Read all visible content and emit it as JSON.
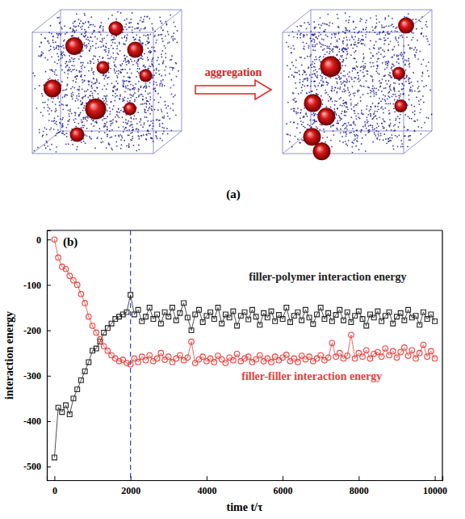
{
  "illustration": {
    "arrow_label": "aggregation",
    "panel_label": "(a)"
  },
  "chart_data": {
    "type": "line",
    "panel_label": "(b)",
    "x_label": "time t/τ",
    "y_label": "interaction energy",
    "x": [
      0,
      100,
      200,
      300,
      400,
      500,
      600,
      700,
      800,
      900,
      1000,
      1100,
      1200,
      1300,
      1400,
      1500,
      1600,
      1700,
      1800,
      1900,
      2000,
      2100,
      2200,
      2300,
      2400,
      2500,
      2600,
      2700,
      2800,
      2900,
      3000,
      3100,
      3200,
      3300,
      3400,
      3500,
      3600,
      3700,
      3800,
      3900,
      4000,
      4100,
      4200,
      4300,
      4400,
      4500,
      4600,
      4700,
      4800,
      4900,
      5000,
      5100,
      5200,
      5300,
      5400,
      5500,
      5600,
      5700,
      5800,
      5900,
      6000,
      6100,
      6200,
      6300,
      6400,
      6500,
      6600,
      6700,
      6800,
      6900,
      7000,
      7100,
      7200,
      7300,
      7400,
      7500,
      7600,
      7700,
      7800,
      7900,
      8000,
      8100,
      8200,
      8300,
      8400,
      8500,
      8600,
      8700,
      8800,
      8900,
      9000,
      9100,
      9200,
      9300,
      9400,
      9500,
      9600,
      9700,
      9800,
      9900,
      10000
    ],
    "series": [
      {
        "name": "filler-polymer interaction energy",
        "color": "#222222",
        "marker": "square",
        "line_style": "solid",
        "values": [
          -480,
          -370,
          -380,
          -365,
          -385,
          -350,
          -330,
          -310,
          -290,
          -270,
          -245,
          -240,
          -225,
          -205,
          -195,
          -185,
          -175,
          -170,
          -165,
          -160,
          -122,
          -165,
          -155,
          -180,
          -170,
          -150,
          -175,
          -165,
          -185,
          -160,
          -170,
          -150,
          -178,
          -162,
          -140,
          -172,
          -200,
          -165,
          -155,
          -182,
          -168,
          -160,
          -175,
          -150,
          -185,
          -165,
          -172,
          -158,
          -190,
          -168,
          -160,
          -176,
          -155,
          -170,
          -188,
          -162,
          -172,
          -158,
          -180,
          -166,
          -175,
          -150,
          -182,
          -168,
          -160,
          -178,
          -155,
          -172,
          -186,
          -165,
          -150,
          -175,
          -162,
          -180,
          -166,
          -155,
          -178,
          -160,
          -182,
          -168,
          -158,
          -175,
          -190,
          -165,
          -172,
          -158,
          -180,
          -168,
          -160,
          -185,
          -170,
          -162,
          -178,
          -155,
          -172,
          -168,
          -188,
          -160,
          -175,
          -165,
          -180
        ]
      },
      {
        "name": "filler-filler interaction energy",
        "color": "#e8413c",
        "marker": "circle",
        "line_style": "solid",
        "values": [
          0,
          -40,
          -60,
          -65,
          -80,
          -90,
          -100,
          -120,
          -140,
          -170,
          -190,
          -205,
          -220,
          -235,
          -245,
          -255,
          -262,
          -268,
          -265,
          -272,
          -275,
          -262,
          -270,
          -258,
          -266,
          -255,
          -268,
          -262,
          -250,
          -265,
          -258,
          -270,
          -262,
          -255,
          -266,
          -260,
          -225,
          -272,
          -264,
          -258,
          -268,
          -262,
          -270,
          -256,
          -264,
          -272,
          -260,
          -266,
          -252,
          -268,
          -262,
          -258,
          -270,
          -264,
          -255,
          -268,
          -262,
          -270,
          -258,
          -266,
          -260,
          -254,
          -268,
          -262,
          -270,
          -256,
          -264,
          -258,
          -268,
          -262,
          -255,
          -266,
          -260,
          -228,
          -258,
          -250,
          -262,
          -256,
          -210,
          -262,
          -250,
          -258,
          -244,
          -262,
          -252,
          -248,
          -258,
          -240,
          -255,
          -246,
          -260,
          -248,
          -238,
          -256,
          -244,
          -262,
          -250,
          -232,
          -258,
          -246,
          -262
        ]
      }
    ],
    "annotations": [
      {
        "x": 2000,
        "color": "#3a3acc",
        "line_style": "dashed"
      }
    ],
    "xlim": [
      -200,
      10200
    ],
    "ylim": [
      -530,
      20
    ],
    "xticks": [
      0,
      2000,
      4000,
      6000,
      8000,
      10000
    ],
    "yticks": [
      0,
      -100,
      -200,
      -300,
      -400,
      -500
    ],
    "grid": false
  }
}
